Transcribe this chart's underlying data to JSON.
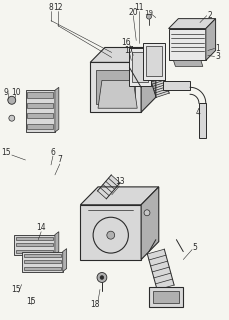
{
  "bg_color": "#f5f5f0",
  "line_color": "#2a2a2a",
  "fig_width": 2.3,
  "fig_height": 3.2,
  "dpi": 100,
  "gray1": "#c8c8c8",
  "gray2": "#b0b0b0",
  "gray3": "#d8d8d8",
  "gray4": "#e8e8e8"
}
